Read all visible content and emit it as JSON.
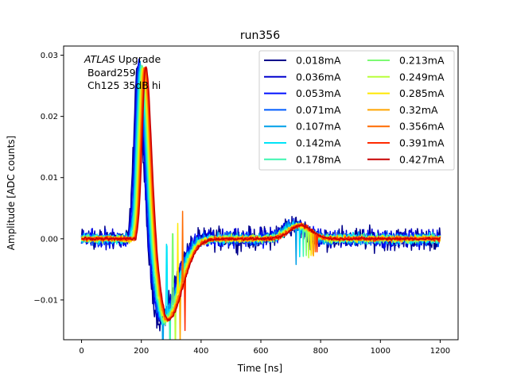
{
  "chart_data": {
    "type": "line",
    "title": "run356",
    "xlabel": "Time [ns]",
    "ylabel": "Amplitude [ADC counts]",
    "xlim": [
      -60,
      1260
    ],
    "ylim": [
      -0.0165,
      0.0315
    ],
    "x_ticks": [
      0,
      200,
      400,
      600,
      800,
      1000,
      1200
    ],
    "y_ticks": [
      -0.01,
      0.0,
      0.01,
      0.02,
      0.03
    ],
    "x_tick_labels": [
      "0",
      "200",
      "400",
      "600",
      "800",
      "1000",
      "1200"
    ],
    "y_tick_labels": [
      "−0.01",
      "0.00",
      "0.01",
      "0.02",
      "0.03"
    ],
    "legend_position": "top-right",
    "grid": false,
    "annotation": {
      "experiment": "ATLAS",
      "line1_suffix": " Upgrade",
      "line2": " Board259",
      "line3": " Ch125 35dB hi"
    },
    "pulse_model": {
      "baseline": 0.0,
      "peak_time": 200,
      "peak_value": 0.0285,
      "undershoot_time": 275,
      "undershoot_value": -0.0133,
      "bump_time": 720,
      "bump_value": 0.0022,
      "x_range": [
        0,
        1200
      ]
    },
    "series": [
      {
        "name": "0.018mA",
        "color": "#00008b",
        "noise": 0.0016,
        "glitch": null
      },
      {
        "name": "0.036mA",
        "color": "#0000cd",
        "noise": 0.0013,
        "glitch": null
      },
      {
        "name": "0.053mA",
        "color": "#0010ff",
        "noise": 0.0011,
        "glitch": null
      },
      {
        "name": "0.071mA",
        "color": "#005cff",
        "noise": 0.0009,
        "glitch": null
      },
      {
        "name": "0.107mA",
        "color": "#00a0e8",
        "noise": 0.0008,
        "glitch": {
          "t1": 272,
          "t2": 718,
          "len": 2
        }
      },
      {
        "name": "0.142mA",
        "color": "#00e4f8",
        "noise": 0.0007,
        "glitch": {
          "t1": 285,
          "t2": 730,
          "len": 2
        }
      },
      {
        "name": "0.178mA",
        "color": "#3cf5b0",
        "noise": 0.0006,
        "glitch": {
          "t1": 296,
          "t2": 742,
          "len": 2
        }
      },
      {
        "name": "0.213mA",
        "color": "#7cfa73",
        "noise": 0.0005,
        "glitch": {
          "t1": 305,
          "t2": 752,
          "len": 2
        }
      },
      {
        "name": "0.249mA",
        "color": "#b8ff3a",
        "noise": 0.0005,
        "glitch": {
          "t1": 314,
          "t2": 760,
          "len": 2
        }
      },
      {
        "name": "0.285mA",
        "color": "#ffe800",
        "noise": 0.0004,
        "glitch": {
          "t1": 322,
          "t2": 768,
          "len": 2
        }
      },
      {
        "name": "0.32mA",
        "color": "#ffa500",
        "noise": 0.0004,
        "glitch": {
          "t1": 330,
          "t2": 775,
          "len": 2
        }
      },
      {
        "name": "0.356mA",
        "color": "#ff6a00",
        "noise": 0.0003,
        "glitch": {
          "t1": 338,
          "t2": 782,
          "len": 2
        }
      },
      {
        "name": "0.391mA",
        "color": "#ff2a00",
        "noise": 0.0003,
        "glitch": {
          "t1": 346,
          "t2": 788,
          "len": 2
        }
      },
      {
        "name": "0.427mA",
        "color": "#c80000",
        "noise": 0.0002,
        "glitch": null
      }
    ]
  }
}
